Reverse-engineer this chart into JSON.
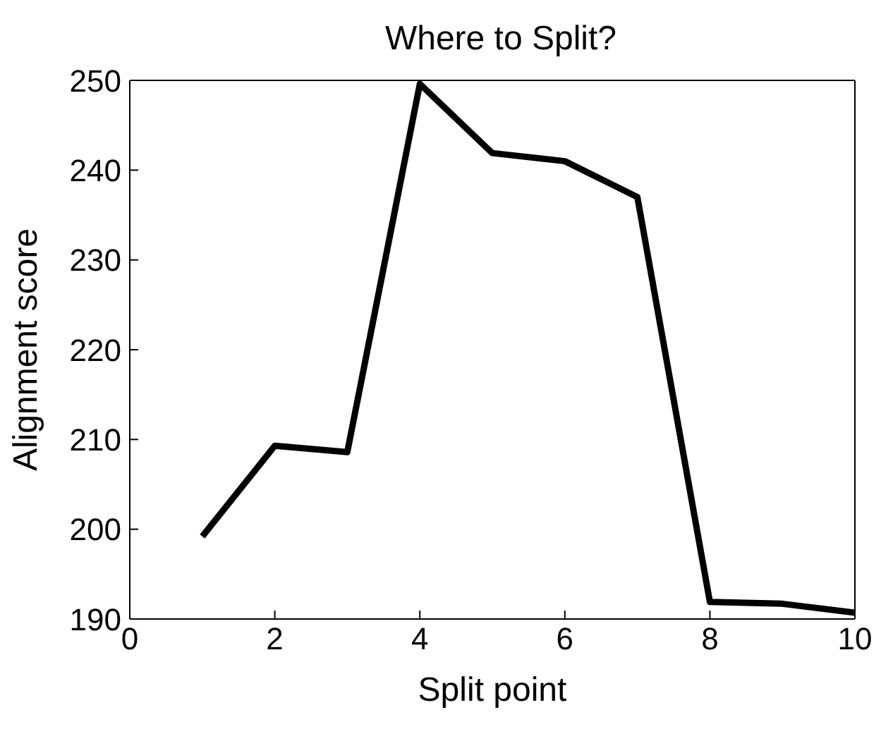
{
  "chart_data": {
    "type": "line",
    "title": "Where to Split?",
    "xlabel": "Split point",
    "ylabel": "Alignment score",
    "x": [
      1,
      2,
      3,
      4,
      5,
      6,
      7,
      8,
      9,
      10
    ],
    "series": [
      {
        "color": "#000000",
        "values": [
          199.2,
          209.3,
          208.6,
          249.6,
          241.9,
          241.0,
          237.0,
          191.9,
          191.7,
          190.7
        ]
      }
    ],
    "xlim": [
      0,
      10
    ],
    "xticks": [
      0,
      2,
      4,
      6,
      8,
      10
    ],
    "ylim": [
      190,
      250
    ],
    "yticks": [
      190,
      200,
      210,
      220,
      230,
      240,
      250
    ],
    "grid": false,
    "legend": false,
    "marker": "none",
    "line_style": "solid"
  }
}
